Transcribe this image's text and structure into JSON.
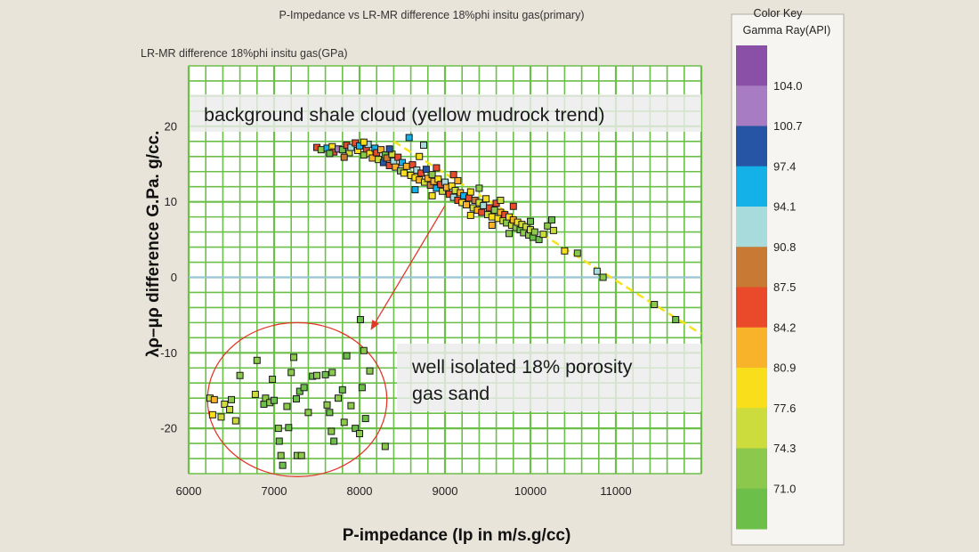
{
  "chart_data": {
    "type": "scatter",
    "title": "P-Impedance vs LR-MR difference 18%phi insitu gas(primary)",
    "y_header": "LR-MR difference 18%phi insitu gas(GPa)",
    "xlabel": "P-impedance (Ip in m/s.g/cc)",
    "ylabel": "λρ–μρ difference G.Pa. g/cc.",
    "xlim": [
      6000,
      12000
    ],
    "ylim": [
      -26,
      28
    ],
    "x_ticks": [
      6000,
      7000,
      8000,
      9000,
      10000,
      11000
    ],
    "y_ticks": [
      20,
      10,
      0,
      -10,
      -20
    ],
    "grid": true,
    "annotations": {
      "shale": "background shale cloud (yellow mudrock trend)",
      "gas_line1": "well isolated 18% porosity",
      "gas_line2": "gas sand"
    },
    "trend_line": {
      "x": [
        8400,
        12000
      ],
      "y": [
        18,
        -7.5
      ]
    },
    "arrow": {
      "from": [
        9000,
        9.5
      ],
      "to": [
        8130,
        -7.0
      ]
    },
    "ellipse": {
      "cx": 7270,
      "cy": -16.2,
      "rx": 1050,
      "ry": 10.2
    },
    "zero_line": 0,
    "series": [
      {
        "group": "shale",
        "points": [
          [
            7500,
            17.2,
            87.0
          ],
          [
            7550,
            16.9,
            75.0
          ],
          [
            7620,
            17.1,
            95.0
          ],
          [
            7680,
            17.3,
            80.0
          ],
          [
            7700,
            16.6,
            85.0
          ],
          [
            7750,
            17.0,
            101.0
          ],
          [
            7800,
            16.9,
            72.0
          ],
          [
            7850,
            17.5,
            86.0
          ],
          [
            7880,
            16.5,
            78.0
          ],
          [
            7900,
            17.2,
            93.0
          ],
          [
            7950,
            17.8,
            88.0
          ],
          [
            7980,
            16.8,
            80.0
          ],
          [
            8000,
            17.4,
            96.0
          ],
          [
            8050,
            16.2,
            75.0
          ],
          [
            8080,
            17.0,
            86.0
          ],
          [
            8100,
            17.6,
            92.0
          ],
          [
            8120,
            16.4,
            79.0
          ],
          [
            8150,
            15.8,
            83.0
          ],
          [
            8180,
            17.1,
            95.0
          ],
          [
            8200,
            16.5,
            88.0
          ],
          [
            8220,
            15.6,
            76.0
          ],
          [
            8250,
            16.9,
            82.0
          ],
          [
            8280,
            15.2,
            99.0
          ],
          [
            8300,
            16.2,
            72.0
          ],
          [
            8320,
            15.8,
            90.0
          ],
          [
            8350,
            14.8,
            85.0
          ],
          [
            8380,
            16.3,
            78.0
          ],
          [
            8400,
            15.4,
            94.0
          ],
          [
            8420,
            14.6,
            82.0
          ],
          [
            8450,
            15.9,
            87.0
          ],
          [
            8480,
            14.1,
            75.0
          ],
          [
            8500,
            15.2,
            96.0
          ],
          [
            8520,
            13.8,
            80.0
          ],
          [
            8550,
            14.7,
            84.0
          ],
          [
            8580,
            18.5,
            95.0
          ],
          [
            8600,
            13.5,
            80.0
          ],
          [
            8620,
            14.9,
            88.0
          ],
          [
            8650,
            13.2,
            79.0
          ],
          [
            8670,
            14.2,
            93.0
          ],
          [
            8700,
            12.9,
            83.0
          ],
          [
            8720,
            13.8,
            86.0
          ],
          [
            8750,
            17.5,
            92.0
          ],
          [
            8760,
            12.6,
            77.0
          ],
          [
            8780,
            14.3,
            98.0
          ],
          [
            8800,
            13.1,
            82.0
          ],
          [
            8830,
            12.2,
            89.0
          ],
          [
            8850,
            13.6,
            75.0
          ],
          [
            8870,
            12.7,
            84.0
          ],
          [
            8900,
            11.8,
            95.0
          ],
          [
            8920,
            13.0,
            80.0
          ],
          [
            8950,
            12.3,
            87.0
          ],
          [
            8970,
            11.4,
            78.0
          ],
          [
            9000,
            12.6,
            92.0
          ],
          [
            9020,
            11.9,
            83.0
          ],
          [
            9050,
            11.0,
            86.0
          ],
          [
            9080,
            12.1,
            80.0
          ],
          [
            9100,
            10.6,
            94.0
          ],
          [
            9120,
            11.5,
            76.0
          ],
          [
            9150,
            10.2,
            88.0
          ],
          [
            9180,
            11.2,
            82.0
          ],
          [
            9200,
            9.9,
            79.0
          ],
          [
            9220,
            10.8,
            96.0
          ],
          [
            9250,
            9.6,
            84.0
          ],
          [
            9280,
            10.5,
            87.0
          ],
          [
            9300,
            11.3,
            80.0
          ],
          [
            9330,
            9.2,
            77.0
          ],
          [
            9350,
            10.2,
            90.0
          ],
          [
            9380,
            8.9,
            82.0
          ],
          [
            9400,
            9.9,
            76.0
          ],
          [
            9430,
            8.6,
            85.0
          ],
          [
            9450,
            9.5,
            93.0
          ],
          [
            9480,
            10.4,
            81.0
          ],
          [
            9500,
            8.3,
            78.0
          ],
          [
            9520,
            9.2,
            86.0
          ],
          [
            9550,
            8.0,
            80.0
          ],
          [
            9580,
            8.9,
            74.0
          ],
          [
            9600,
            9.8,
            88.0
          ],
          [
            9620,
            7.8,
            79.0
          ],
          [
            9650,
            8.6,
            83.0
          ],
          [
            9680,
            7.5,
            76.0
          ],
          [
            9700,
            8.3,
            86.0
          ],
          [
            9720,
            7.2,
            73.0
          ],
          [
            9750,
            8.0,
            80.0
          ],
          [
            9780,
            6.9,
            78.0
          ],
          [
            9800,
            7.6,
            82.0
          ],
          [
            9830,
            6.6,
            75.0
          ],
          [
            9850,
            7.3,
            79.0
          ],
          [
            9880,
            6.3,
            72.0
          ],
          [
            9900,
            7.0,
            77.0
          ],
          [
            9920,
            5.9,
            74.0
          ],
          [
            9950,
            6.7,
            78.0
          ],
          [
            9980,
            5.6,
            73.0
          ],
          [
            10000,
            6.3,
            76.0
          ],
          [
            10030,
            5.3,
            71.0
          ],
          [
            10050,
            6.0,
            75.0
          ],
          [
            10100,
            5.0,
            72.0
          ],
          [
            10150,
            5.7,
            77.0
          ],
          [
            10200,
            6.8,
            74.0
          ],
          [
            10250,
            7.6,
            71.0
          ],
          [
            10270,
            6.2,
            78.0
          ],
          [
            7650,
            16.4,
            72.0
          ],
          [
            7820,
            15.9,
            90.0
          ],
          [
            8050,
            17.9,
            81.0
          ],
          [
            8350,
            17.0,
            98.0
          ],
          [
            8700,
            16.0,
            80.0
          ],
          [
            8900,
            14.5,
            86.0
          ],
          [
            9150,
            12.8,
            84.0
          ],
          [
            9400,
            11.8,
            73.0
          ],
          [
            9650,
            10.2,
            77.0
          ],
          [
            9800,
            9.4,
            85.0
          ],
          [
            10000,
            7.4,
            72.0
          ],
          [
            9100,
            13.6,
            88.0
          ],
          [
            8650,
            11.6,
            96.0
          ],
          [
            8850,
            10.8,
            80.0
          ],
          [
            9300,
            8.2,
            79.0
          ],
          [
            9550,
            6.9,
            82.0
          ],
          [
            9750,
            5.8,
            74.0
          ],
          [
            10400,
            3.5,
            79.0
          ],
          [
            10550,
            3.2,
            74.0
          ],
          [
            10780,
            0.8,
            94.0
          ],
          [
            10850,
            0.0,
            74.0
          ],
          [
            11450,
            -3.6,
            74.0
          ],
          [
            11700,
            -5.6,
            72.0
          ]
        ]
      },
      {
        "group": "gas-sand",
        "points": [
          [
            6250,
            -16.0,
            76.0
          ],
          [
            6300,
            -16.2,
            84.0
          ],
          [
            6280,
            -18.2,
            80.0
          ],
          [
            6380,
            -18.5,
            77.0
          ],
          [
            6420,
            -16.8,
            78.0
          ],
          [
            6480,
            -17.5,
            77.0
          ],
          [
            6500,
            -16.2,
            74.0
          ],
          [
            6550,
            -19.0,
            76.0
          ],
          [
            6600,
            -13.0,
            73.0
          ],
          [
            6780,
            -15.5,
            76.0
          ],
          [
            6800,
            -11.0,
            73.0
          ],
          [
            6880,
            -16.8,
            72.0
          ],
          [
            6900,
            -16.0,
            73.0
          ],
          [
            6950,
            -16.6,
            74.0
          ],
          [
            6980,
            -13.5,
            73.0
          ],
          [
            7000,
            -16.3,
            72.0
          ],
          [
            7050,
            -20.0,
            73.0
          ],
          [
            7060,
            -21.7,
            72.0
          ],
          [
            7080,
            -23.6,
            73.0
          ],
          [
            7100,
            -24.9,
            72.0
          ],
          [
            7150,
            -17.1,
            73.0
          ],
          [
            7170,
            -19.9,
            72.0
          ],
          [
            7200,
            -12.6,
            73.0
          ],
          [
            7230,
            -10.6,
            74.0
          ],
          [
            7260,
            -16.1,
            72.0
          ],
          [
            7270,
            -23.6,
            73.0
          ],
          [
            7300,
            -15.1,
            72.0
          ],
          [
            7320,
            -23.6,
            73.0
          ],
          [
            7350,
            -14.6,
            72.0
          ],
          [
            7400,
            -17.9,
            73.0
          ],
          [
            7450,
            -13.1,
            72.0
          ],
          [
            7500,
            -13.0,
            73.0
          ],
          [
            7600,
            -12.9,
            72.0
          ],
          [
            7620,
            -16.9,
            73.0
          ],
          [
            7650,
            -17.9,
            72.0
          ],
          [
            7670,
            -20.4,
            73.0
          ],
          [
            7680,
            -12.6,
            73.0
          ],
          [
            7700,
            -21.7,
            72.0
          ],
          [
            7750,
            -16.0,
            73.0
          ],
          [
            7800,
            -14.9,
            72.0
          ],
          [
            7820,
            -19.2,
            73.0
          ],
          [
            7850,
            -10.4,
            72.0
          ],
          [
            7900,
            -17.0,
            73.0
          ],
          [
            7950,
            -20.0,
            72.0
          ],
          [
            8000,
            -20.7,
            73.0
          ],
          [
            8030,
            -14.6,
            72.0
          ],
          [
            8050,
            -9.7,
            73.0
          ],
          [
            8070,
            -18.7,
            72.0
          ],
          [
            8120,
            -12.4,
            73.0
          ],
          [
            8010,
            -5.6,
            72.0
          ],
          [
            8300,
            -22.4,
            73.0
          ]
        ]
      }
    ]
  },
  "color_key": {
    "title": "Color Key",
    "subtitle": "Gamma Ray(API)",
    "labels": [
      "104.0",
      "100.7",
      "97.4",
      "94.1",
      "90.8",
      "87.5",
      "84.2",
      "80.9",
      "77.6",
      "74.3",
      "71.0"
    ],
    "colors": [
      "#8a4fa6",
      "#a77cc3",
      "#2655a6",
      "#14b1e8",
      "#a8dbdb",
      "#c87a35",
      "#ea4a2a",
      "#f9b32a",
      "#f9de1c",
      "#ccdc3c",
      "#8cc84c",
      "#6cbf48"
    ],
    "range": [
      69.0,
      107.0
    ]
  }
}
